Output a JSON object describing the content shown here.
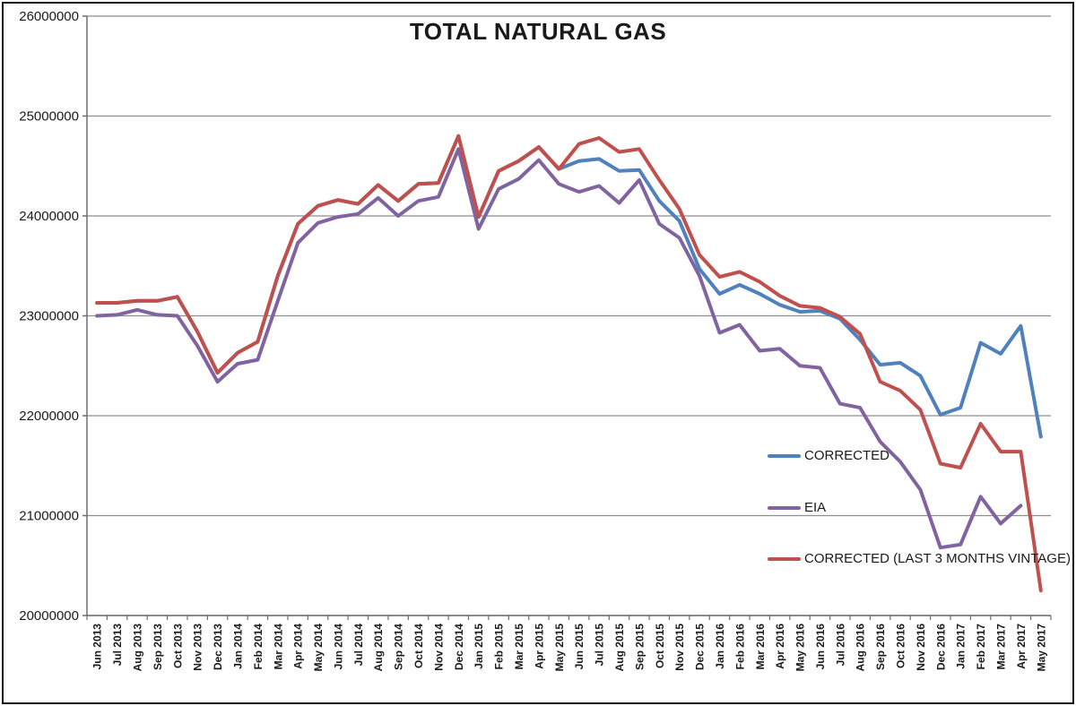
{
  "chart_data": {
    "type": "line",
    "title": "TOTAL NATURAL GAS",
    "xlabel": "",
    "ylabel": "",
    "ylim": [
      20000000,
      26000000
    ],
    "y_tick_step": 1000000,
    "y_tick_labels": [
      "26000000",
      "25000000",
      "24000000",
      "23000000",
      "22000000",
      "21000000",
      "20000000"
    ],
    "grid": true,
    "legend_position": "inside-right",
    "x_categories": [
      "Jun 2013",
      "Jul 2013",
      "Aug 2013",
      "Sep 2013",
      "Oct 2013",
      "Nov 2013",
      "Dec 2013",
      "Jan 2014",
      "Feb 2014",
      "Mar 2014",
      "Apr 2014",
      "May 2014",
      "Jun 2014",
      "Jul 2014",
      "Aug 2014",
      "Sep 2014",
      "Oct 2014",
      "Nov 2014",
      "Dec 2014",
      "Jan 2015",
      "Feb 2015",
      "Mar 2015",
      "Apr 2015",
      "May 2015",
      "Jun 2015",
      "Jul 2015",
      "Aug 2015",
      "Sep 2015",
      "Oct 2015",
      "Nov 2015",
      "Dec 2015",
      "Jan 2016",
      "Feb 2016",
      "Mar 2016",
      "Apr 2016",
      "May 2016",
      "Jun 2016",
      "Jul 2016",
      "Aug 2016",
      "Sep 2016",
      "Oct 2016",
      "Nov 2016",
      "Dec 2016",
      "Jan 2017",
      "Feb 2017",
      "Mar 2017",
      "Apr 2017",
      "May 2017"
    ],
    "series": [
      {
        "name": "CORRECTED",
        "color": "#4F81BD",
        "values": [
          23130000,
          23130000,
          23150000,
          23150000,
          23190000,
          22840000,
          22430000,
          22630000,
          22740000,
          23400000,
          23920000,
          24100000,
          24160000,
          24120000,
          24310000,
          24150000,
          24320000,
          24330000,
          24800000,
          23990000,
          24450000,
          24550000,
          24690000,
          24470000,
          24550000,
          24570000,
          24450000,
          24460000,
          24150000,
          23950000,
          23470000,
          23220000,
          23310000,
          23220000,
          23110000,
          23040000,
          23050000,
          22970000,
          22760000,
          22510000,
          22530000,
          22400000,
          22010000,
          22080000,
          22730000,
          22620000,
          22900000,
          21790000
        ]
      },
      {
        "name": "EIA",
        "color": "#8064A2",
        "values": [
          23000000,
          23010000,
          23060000,
          23010000,
          23000000,
          22700000,
          22340000,
          22520000,
          22560000,
          23150000,
          23730000,
          23930000,
          23990000,
          24020000,
          24180000,
          24000000,
          24150000,
          24190000,
          24670000,
          23870000,
          24270000,
          24370000,
          24560000,
          24320000,
          24240000,
          24300000,
          24130000,
          24360000,
          23920000,
          23780000,
          23400000,
          22830000,
          22910000,
          22650000,
          22670000,
          22500000,
          22480000,
          22120000,
          22080000,
          21740000,
          21540000,
          21260000,
          20680000,
          20710000,
          21190000,
          20920000,
          21100000,
          null
        ]
      },
      {
        "name": "CORRECTED (LAST 3 MONTHS VINTAGE)",
        "color": "#C0504D",
        "values": [
          23130000,
          23130000,
          23150000,
          23150000,
          23190000,
          22840000,
          22430000,
          22630000,
          22740000,
          23400000,
          23920000,
          24100000,
          24160000,
          24120000,
          24310000,
          24150000,
          24320000,
          24330000,
          24800000,
          23990000,
          24450000,
          24550000,
          24690000,
          24470000,
          24720000,
          24780000,
          24640000,
          24670000,
          24360000,
          24070000,
          23610000,
          23390000,
          23440000,
          23340000,
          23200000,
          23100000,
          23080000,
          22990000,
          22820000,
          22340000,
          22250000,
          22060000,
          21520000,
          21480000,
          21920000,
          21640000,
          21640000,
          20250000
        ]
      }
    ]
  }
}
